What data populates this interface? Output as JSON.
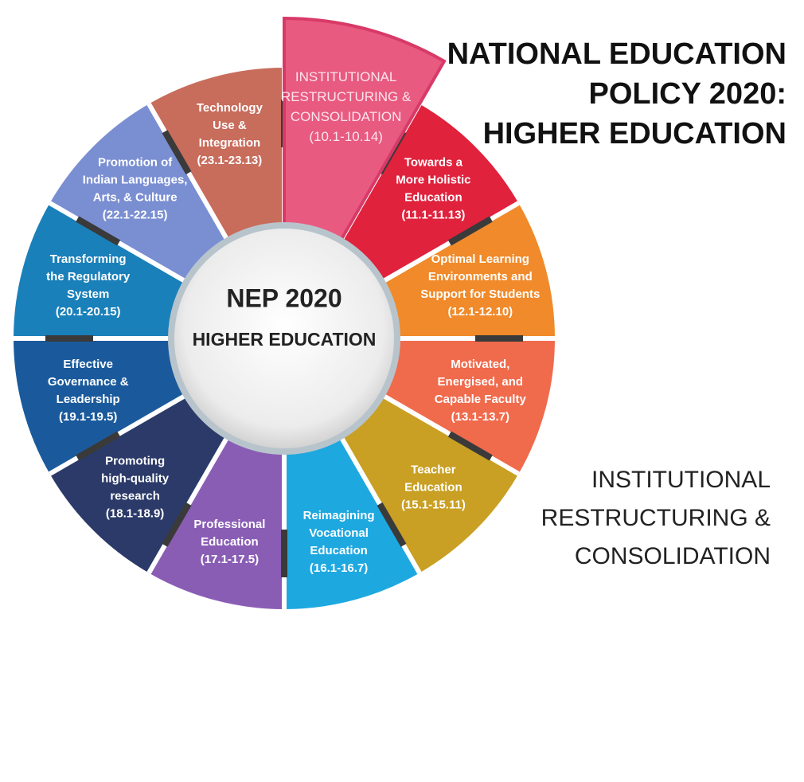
{
  "header": {
    "title_lines": [
      "NATIONAL EDUCATION",
      "POLICY 2020:",
      "HIGHER EDUCATION"
    ]
  },
  "center": {
    "title": "NEP 2020",
    "subtitle": "HIGHER EDUCATION"
  },
  "focus": {
    "lines": [
      "INSTITUTIONAL",
      "RESTRUCTURING &",
      "CONSOLIDATION"
    ]
  },
  "segments": [
    {
      "lines": [
        "INSTITUTIONAL",
        "RESTRUCTURING &",
        "CONSOLIDATION"
      ],
      "ref": "(10.1-10.14)",
      "color": "#e85a80",
      "highlight": true
    },
    {
      "lines": [
        "Towards a",
        "More Holistic",
        "Education"
      ],
      "ref": "(11.1-11.13)",
      "color": "#e0223c"
    },
    {
      "lines": [
        "Optimal Learning",
        "Environments and",
        "Support for Students"
      ],
      "ref": "(12.1-12.10)",
      "color": "#f08a2a"
    },
    {
      "lines": [
        "Motivated,",
        "Energised, and",
        "Capable Faculty"
      ],
      "ref": "(13.1-13.7)",
      "color": "#f06a4c"
    },
    {
      "lines": [
        "Teacher",
        "Education"
      ],
      "ref": "(15.1-15.11)",
      "color": "#c9a024"
    },
    {
      "lines": [
        "Reimagining",
        "Vocational",
        "Education"
      ],
      "ref": "(16.1-16.7)",
      "color": "#1ea8e0"
    },
    {
      "lines": [
        "Professional",
        "Education"
      ],
      "ref": "(17.1-17.5)",
      "color": "#8a5db5"
    },
    {
      "lines": [
        "Promoting",
        "high-quality",
        "research"
      ],
      "ref": "(18.1-18.9)",
      "color": "#2b3a68"
    },
    {
      "lines": [
        "Effective",
        "Governance &",
        "Leadership"
      ],
      "ref": "(19.1-19.5)",
      "color": "#1a5a9c"
    },
    {
      "lines": [
        "Transforming",
        "the Regulatory",
        "System"
      ],
      "ref": "(20.1-20.15)",
      "color": "#1a80ba"
    },
    {
      "lines": [
        "Promotion of",
        "Indian Languages,",
        "Arts, & Culture"
      ],
      "ref": "(22.1-22.15)",
      "color": "#7a8ed2"
    },
    {
      "lines": [
        "Technology",
        "Use &",
        "Integration"
      ],
      "ref": "(23.1-23.13)",
      "color": "#c86c5c"
    }
  ]
}
